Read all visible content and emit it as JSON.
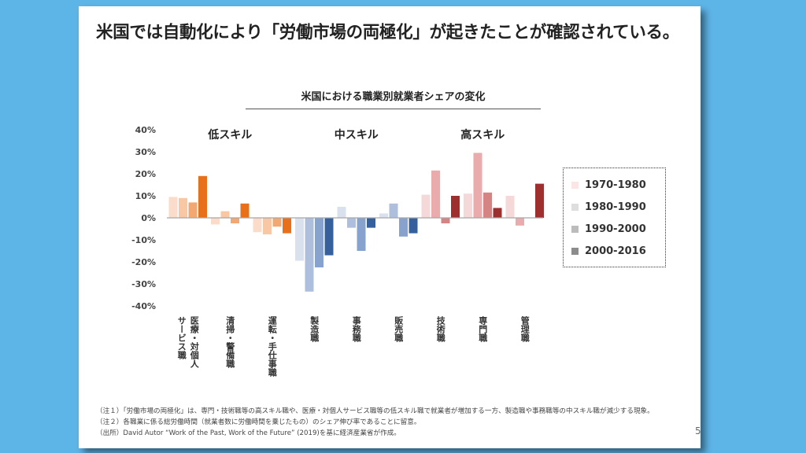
{
  "headline": "米国では自動化により「労働市場の両極化」が起きたことが確認されている。",
  "chart_data": {
    "type": "bar",
    "title": "米国における職業別就業者シェアの変化",
    "ylim": [
      -0.4,
      0.4
    ],
    "yticks": [
      -0.4,
      -0.3,
      -0.2,
      -0.1,
      0,
      0.1,
      0.2,
      0.3,
      0.4
    ],
    "ytick_labels": [
      "-40%",
      "-30%",
      "-20%",
      "-10%",
      "0%",
      "10%",
      "20%",
      "30%",
      "40%"
    ],
    "groups": [
      {
        "label": "低スキル",
        "categories": [
          0,
          1,
          2
        ]
      },
      {
        "label": "中スキル",
        "categories": [
          3,
          4,
          5
        ]
      },
      {
        "label": "高スキル",
        "categories": [
          6,
          7,
          8
        ]
      }
    ],
    "categories": [
      "医療・対個人サービス職",
      "清掃・警備職",
      "運転・手仕事職",
      "製造職",
      "事務職",
      "販売職",
      "技術職",
      "専門職",
      "管理職"
    ],
    "category_label_lines": [
      [
        "医療・対個人",
        "サービス職"
      ],
      [
        "清掃・警備職"
      ],
      [
        "運転・手仕事職"
      ],
      [
        "製造職"
      ],
      [
        "事務職"
      ],
      [
        "販売職"
      ],
      [
        "技術職"
      ],
      [
        "専門職"
      ],
      [
        "管理職"
      ]
    ],
    "series": [
      {
        "name": "1970-1980",
        "values": [
          0.095,
          -0.03,
          -0.065,
          -0.195,
          0.05,
          0.02,
          0.105,
          0.11,
          0.1
        ]
      },
      {
        "name": "1980-1990",
        "values": [
          0.09,
          0.03,
          -0.075,
          -0.335,
          -0.045,
          0.065,
          0.215,
          0.295,
          -0.035
        ]
      },
      {
        "name": "1990-2000",
        "values": [
          0.07,
          -0.025,
          -0.04,
          -0.225,
          -0.15,
          -0.085,
          -0.025,
          0.115,
          0.0
        ]
      },
      {
        "name": "2000-2016",
        "values": [
          0.19,
          0.065,
          -0.07,
          -0.17,
          -0.045,
          -0.07,
          0.1,
          0.045,
          0.155
        ]
      }
    ],
    "colors": {
      "low": [
        "#fbdccb",
        "#f8c7a4",
        "#f2a870",
        "#e8701a"
      ],
      "mid": [
        "#d9e1ef",
        "#aebfdd",
        "#87a2cc",
        "#35609c"
      ],
      "high": [
        "#f5d8d8",
        "#e9abab",
        "#d58484",
        "#9e2f2f"
      ],
      "zero_line": "#a6a6a6"
    },
    "legend": {
      "position": "right",
      "swatches": [
        "#fbe6e6",
        "#dedede",
        "#bcbcbc",
        "#8c8c8c"
      ]
    },
    "grid": false
  },
  "notes": [
    "（注１）「労働市場の両極化」は、専門・技術職等の高スキル職や、医療・対個人サービス職等の低スキル職で就業者が増加する一方、製造職や事務職等の中スキル職が減少する現象。",
    "（注２）各職業に係る総労働時間（就業者数に労働時間を乗じたもの）のシェア伸び率であることに留意。",
    "（出所）David Autor “Work of the Past, Work of the Future” (2019)を基に経済産業省が作成。"
  ],
  "page_number": "5"
}
